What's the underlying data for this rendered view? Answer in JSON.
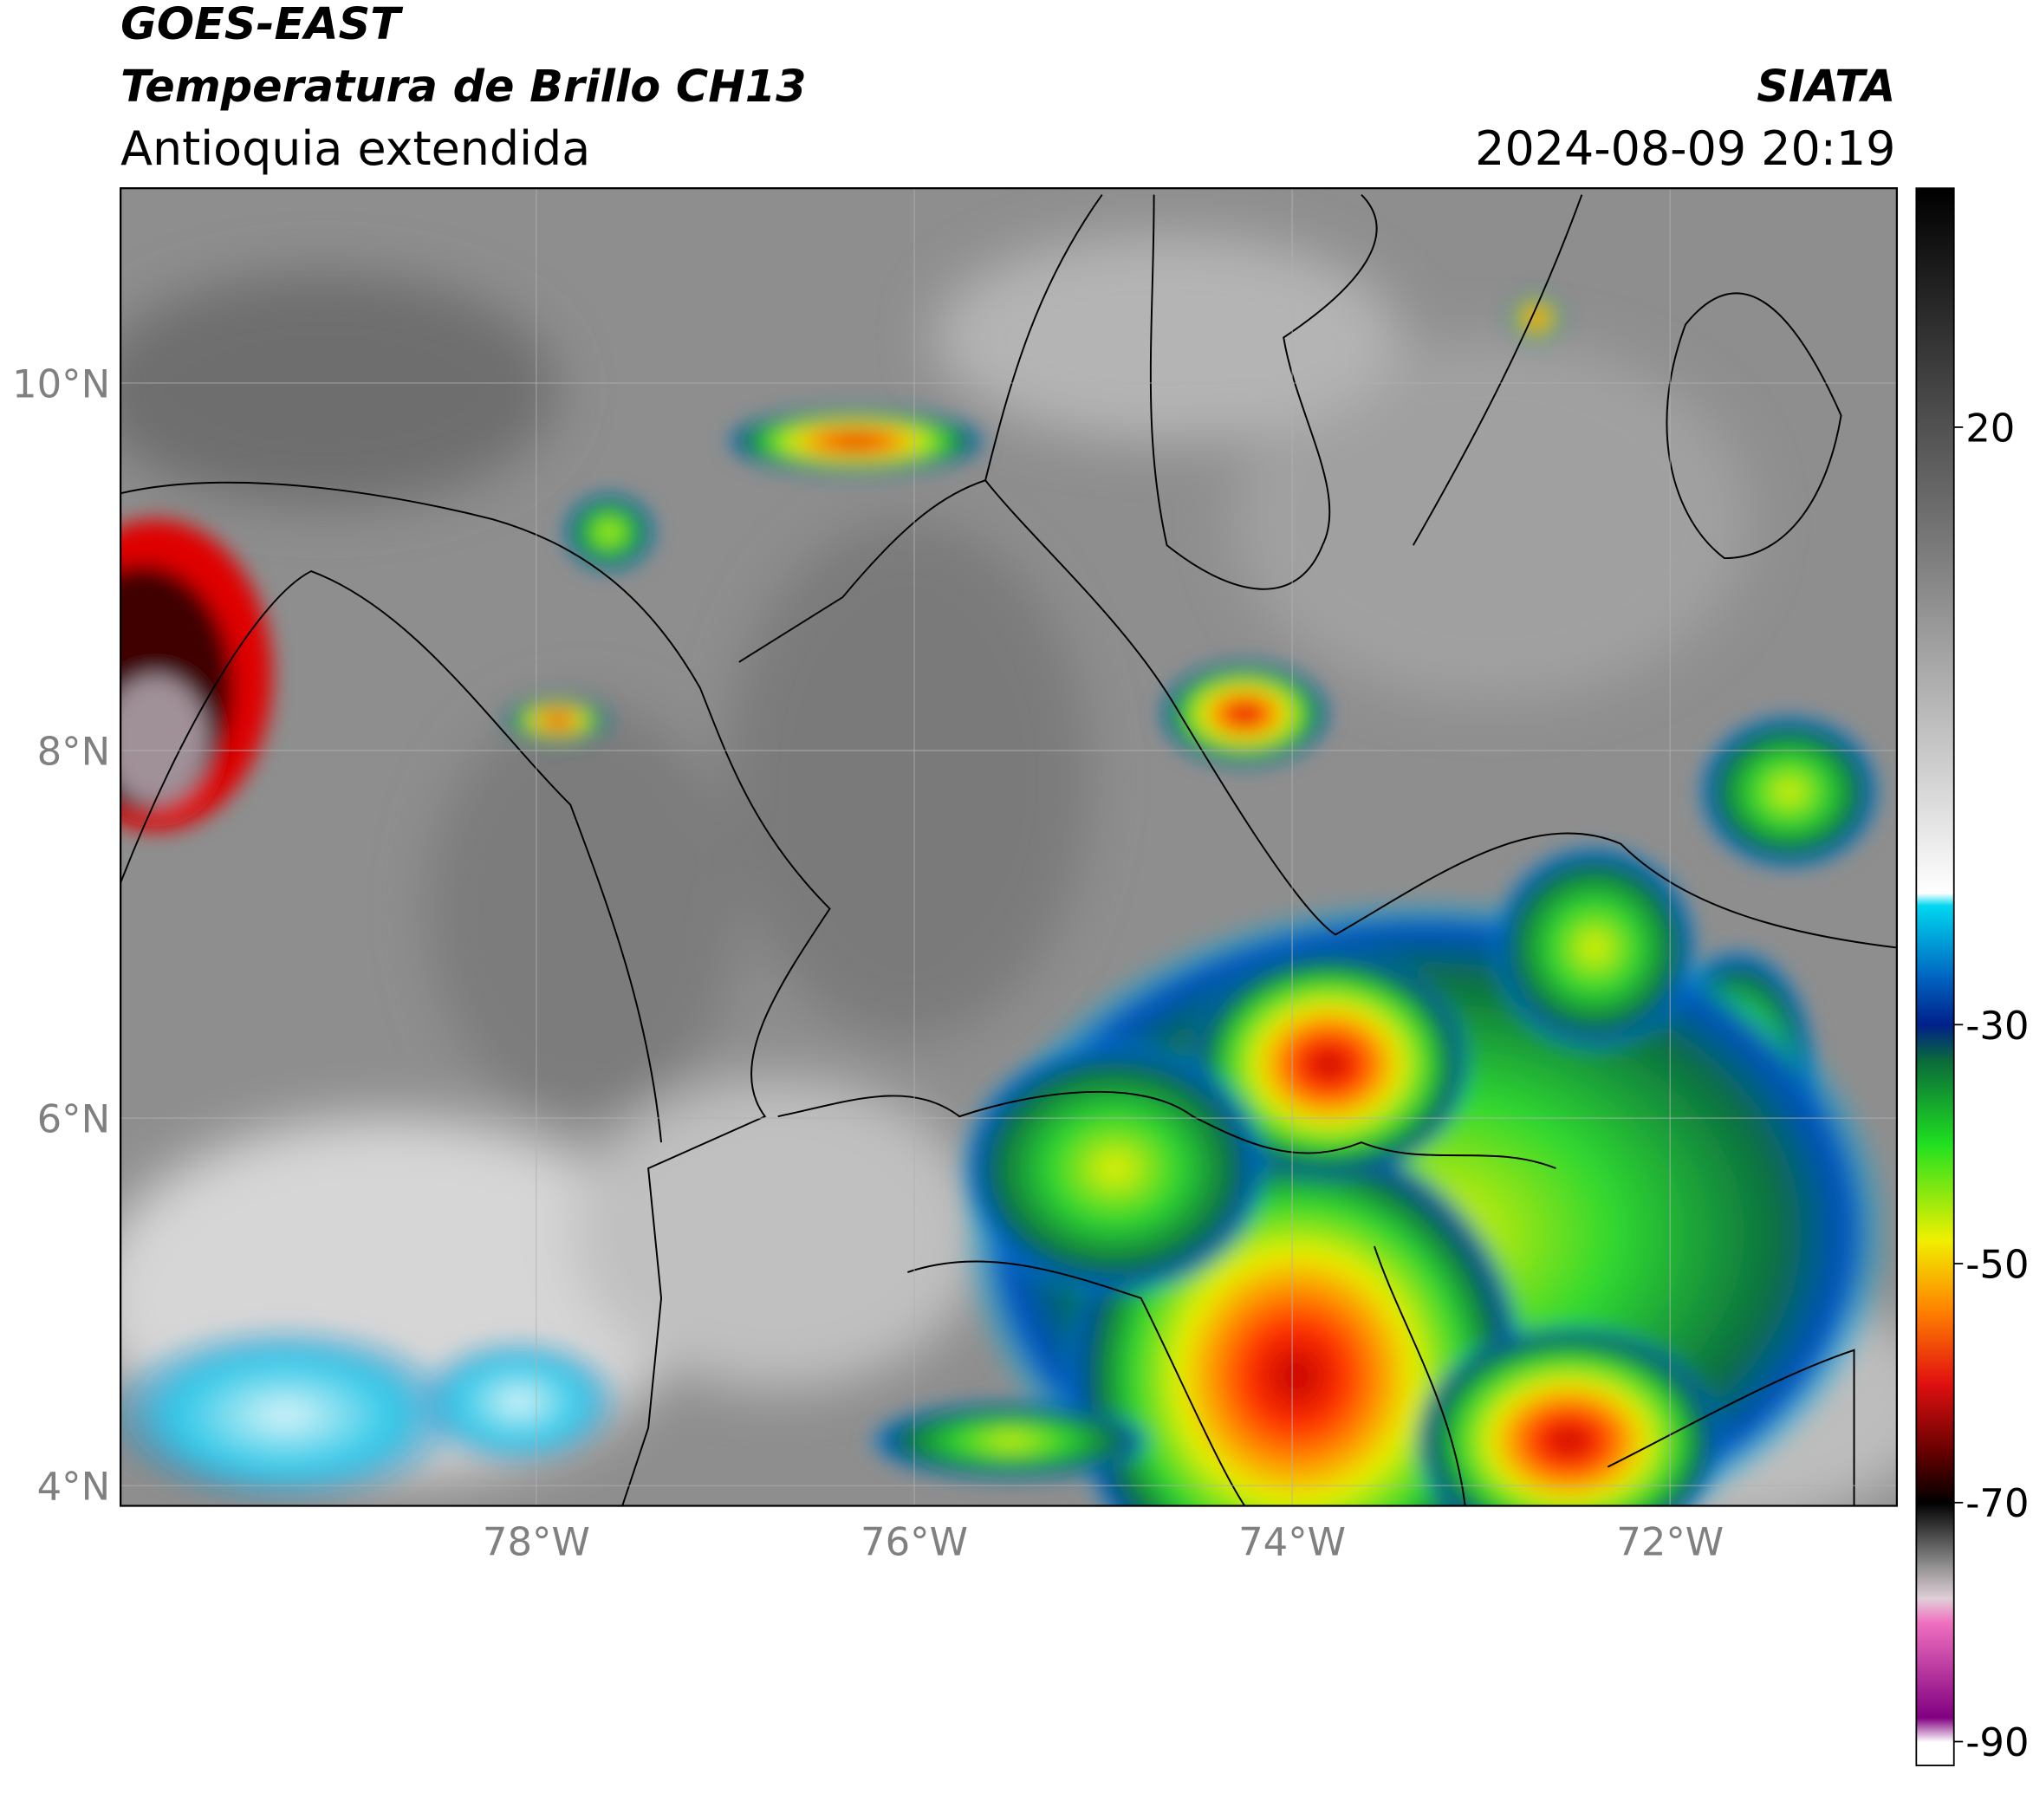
{
  "header": {
    "title": "GOES-EAST",
    "subtitle": "Temperatura de Brillo CH13",
    "region": "Antioquia extendida",
    "source": "SIATA",
    "datetime": "2024-08-09 20:19"
  },
  "map": {
    "xlim": [
      -80.2,
      -70.8
    ],
    "ylim": [
      3.89,
      11.06
    ],
    "xticks": [
      {
        "value": -78,
        "label": "78°W"
      },
      {
        "value": -76,
        "label": "76°W"
      },
      {
        "value": -74,
        "label": "74°W"
      },
      {
        "value": -72,
        "label": "72°W"
      }
    ],
    "yticks": [
      {
        "value": 4,
        "label": "4°N"
      },
      {
        "value": 6,
        "label": "6°N"
      },
      {
        "value": 8,
        "label": "8°N"
      },
      {
        "value": 10,
        "label": "10°N"
      }
    ]
  },
  "colorbar": {
    "lim": [
      -92,
      40
    ],
    "ticks": [
      20,
      -30,
      -50,
      -70,
      -90
    ],
    "stops": [
      {
        "value": 40,
        "color": "#000000"
      },
      {
        "value": 10,
        "color": "#7a7a7a"
      },
      {
        "value": -19,
        "color": "#ffffff"
      },
      {
        "value": -20,
        "color": "#00d8f0"
      },
      {
        "value": -26,
        "color": "#0064c0"
      },
      {
        "value": -30,
        "color": "#00208a"
      },
      {
        "value": -33,
        "color": "#0a6a3a"
      },
      {
        "value": -40,
        "color": "#20e020"
      },
      {
        "value": -48,
        "color": "#f0f000"
      },
      {
        "value": -54,
        "color": "#ff8000"
      },
      {
        "value": -60,
        "color": "#e01010"
      },
      {
        "value": -66,
        "color": "#600000"
      },
      {
        "value": -70,
        "color": "#000000"
      },
      {
        "value": -75,
        "color": "#888888"
      },
      {
        "value": -78,
        "color": "#e0d0d8"
      },
      {
        "value": -80,
        "color": "#f070c0"
      },
      {
        "value": -88,
        "color": "#800080"
      },
      {
        "value": -90,
        "color": "#ffffff"
      },
      {
        "value": -92,
        "color": "#ffffff"
      }
    ]
  }
}
